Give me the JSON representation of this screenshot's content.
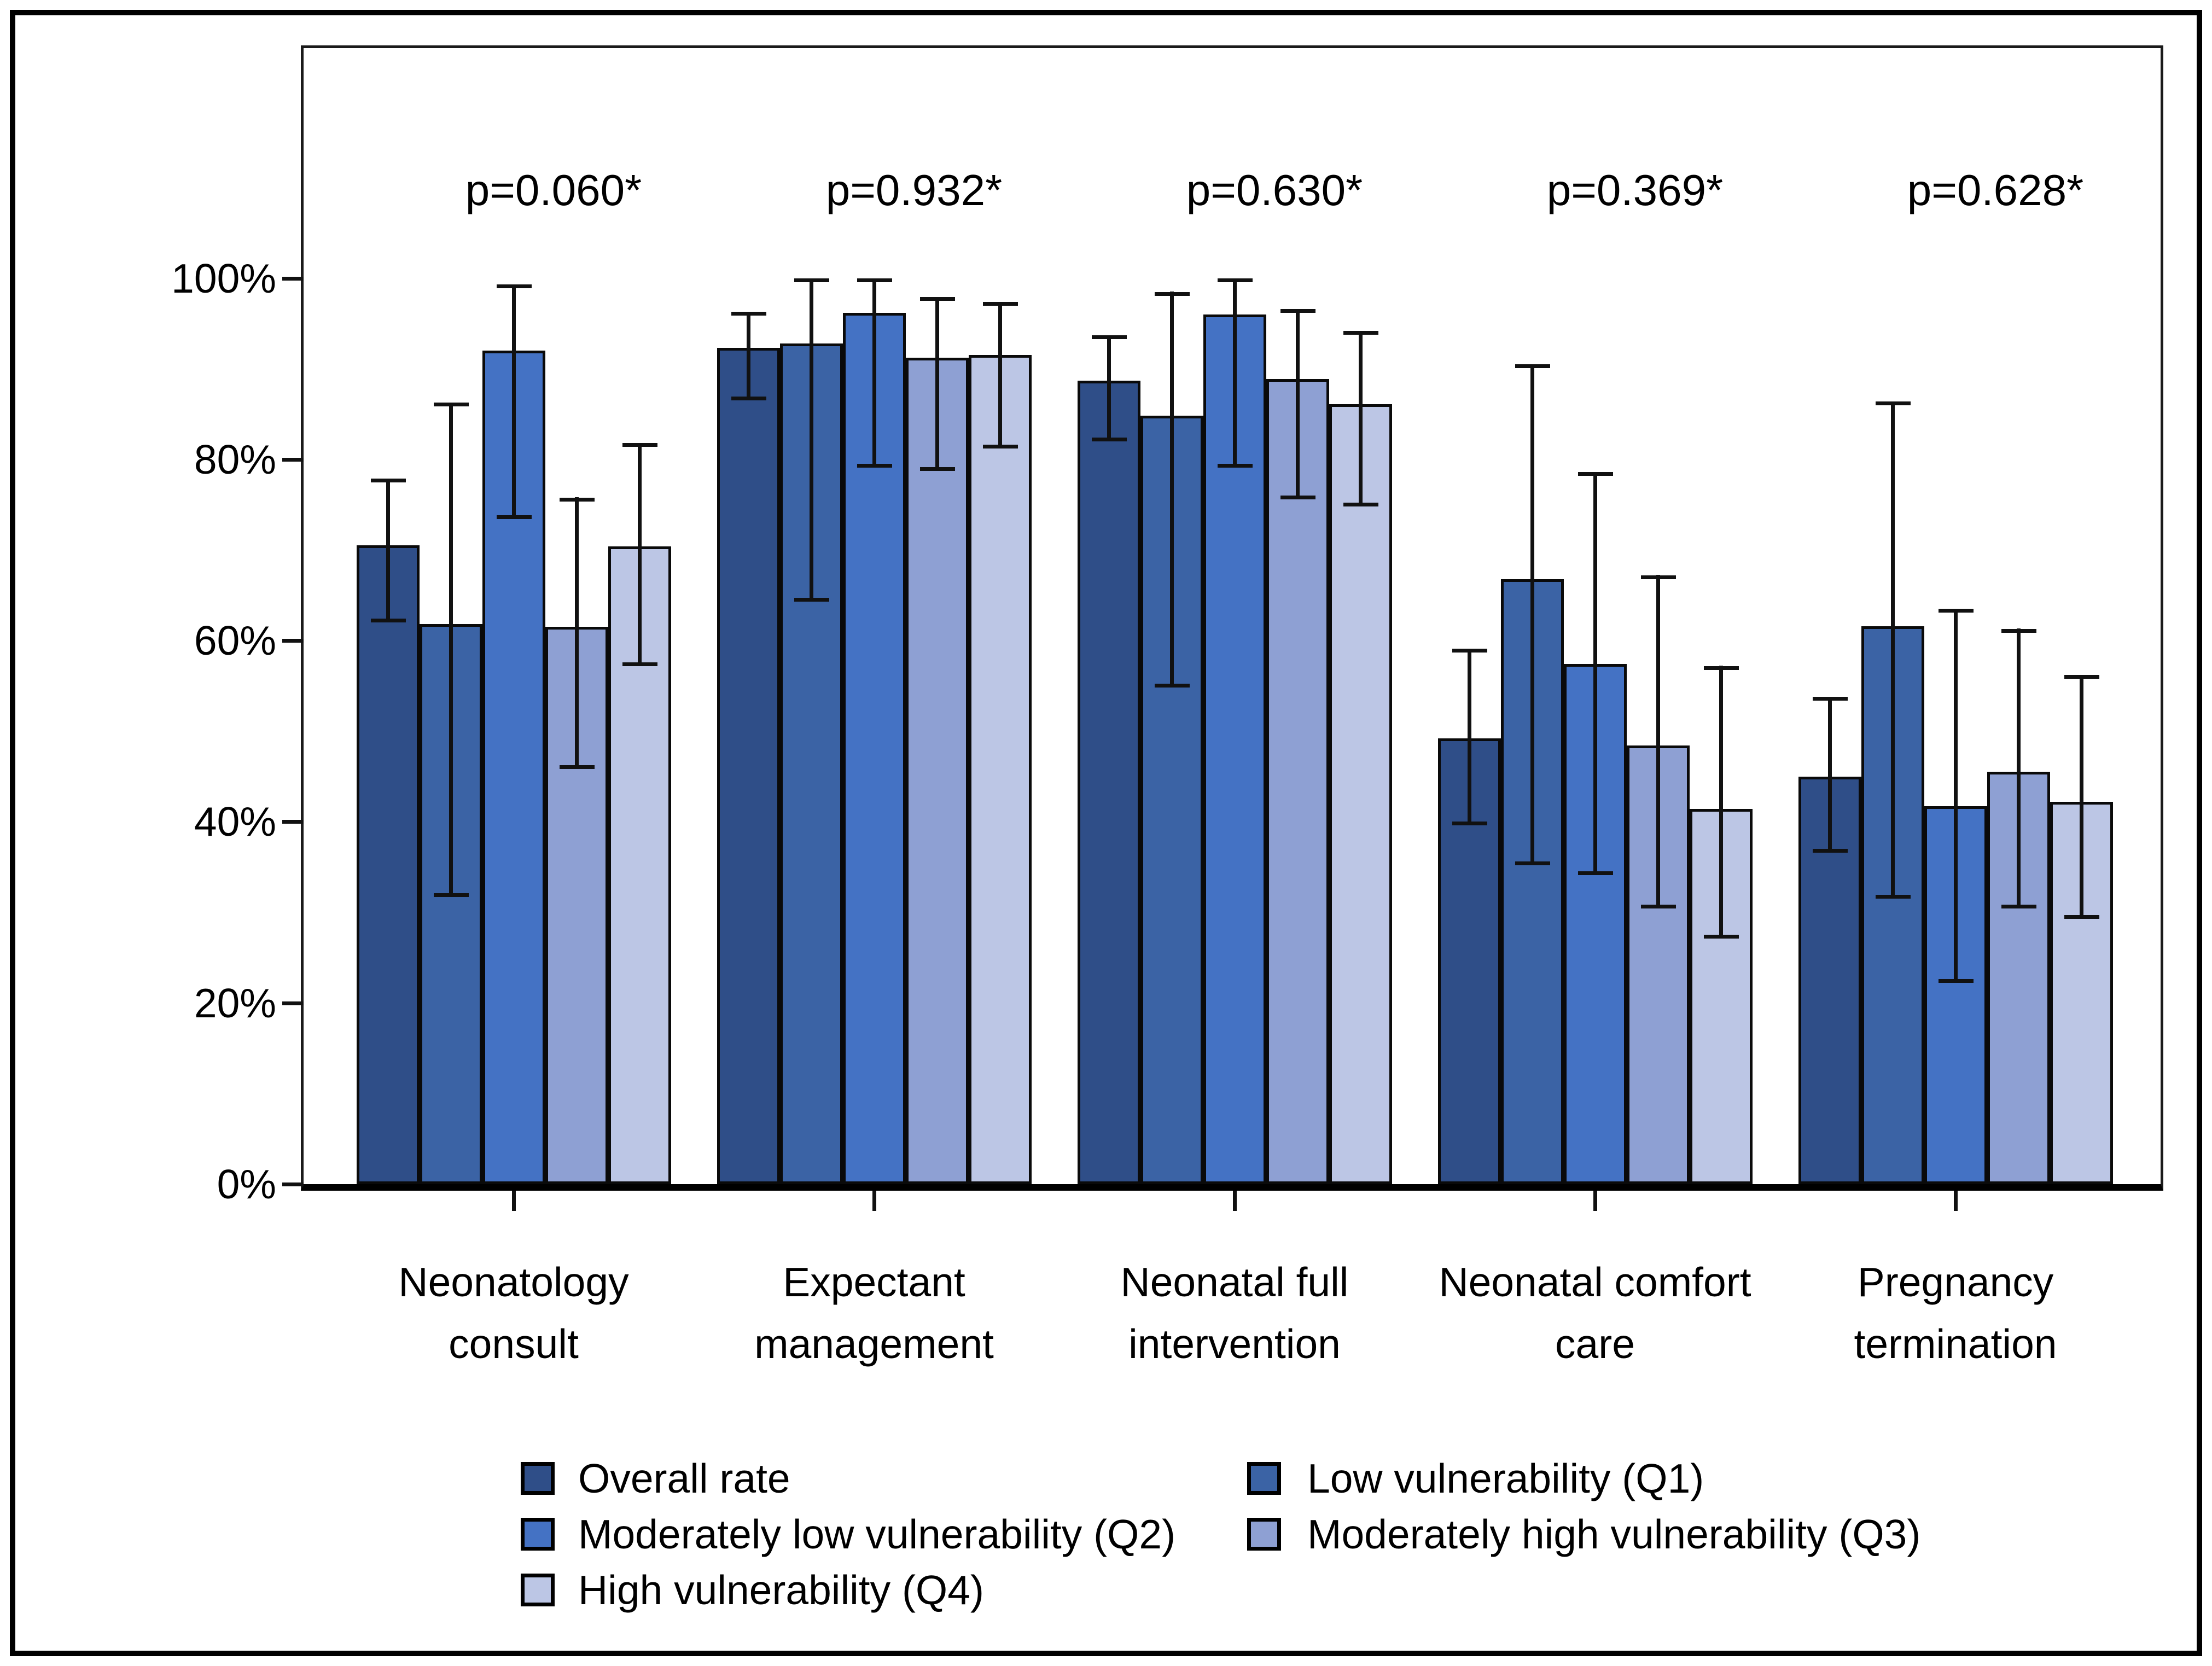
{
  "figure": {
    "background": "#ffffff",
    "border_color": "#000000",
    "axis_color": "#111111"
  },
  "chart_data": {
    "type": "bar",
    "title": "",
    "xlabel": "",
    "ylabel": "",
    "categories": [
      {
        "line1": "Neonatology",
        "line2": "consult"
      },
      {
        "line1": "Expectant",
        "line2": "management"
      },
      {
        "line1": "Neonatal full",
        "line2": "intervention"
      },
      {
        "line1": "Neonatal comfort",
        "line2": "care"
      },
      {
        "line1": "Pregnancy",
        "line2": "termination"
      }
    ],
    "p_labels": [
      "p=0.060*",
      "p=0.932*",
      "p=0.630*",
      "p=0.369*",
      "p=0.628*"
    ],
    "series": [
      {
        "name": "Overall rate",
        "color": "#2F4E88",
        "values": [
          70.5,
          92.3,
          88.7,
          49.2,
          45.0
        ],
        "ci_low": [
          62.0,
          86.5,
          82.0,
          39.6,
          36.6
        ],
        "ci_high": [
          77.9,
          96.3,
          93.7,
          59.1,
          53.8
        ]
      },
      {
        "name": "Low vulnerability (Q1)",
        "color": "#3B63A5",
        "values": [
          61.8,
          92.8,
          84.8,
          66.8,
          61.6
        ],
        "ci_low": [
          31.7,
          64.3,
          54.8,
          35.2,
          31.5
        ],
        "ci_high": [
          86.3,
          100,
          98.5,
          90.5,
          86.4
        ]
      },
      {
        "name": "Moderately low vulnerability (Q2)",
        "color": "#4472C4",
        "values": [
          92.0,
          96.2,
          96.0,
          57.4,
          41.7
        ],
        "ci_low": [
          73.4,
          79.1,
          79.1,
          34.1,
          22.2
        ],
        "ci_high": [
          99.3,
          100,
          100,
          78.6,
          63.5
        ]
      },
      {
        "name": "Moderately high vulnerability (Q3)",
        "color": "#8EA0D3",
        "values": [
          61.5,
          91.2,
          88.9,
          48.4,
          45.5
        ],
        "ci_low": [
          45.8,
          78.7,
          75.6,
          30.4,
          30.4
        ],
        "ci_high": [
          75.8,
          97.9,
          96.6,
          67.2,
          61.3
        ]
      },
      {
        "name": "High vulnerability (Q4)",
        "color": "#BCC6E5",
        "values": [
          70.4,
          91.5,
          86.1,
          41.4,
          42.2
        ],
        "ci_low": [
          57.2,
          81.2,
          74.8,
          27.1,
          29.3
        ],
        "ci_high": [
          81.8,
          97.4,
          94.2,
          57.2,
          56.2
        ]
      }
    ],
    "y_axis": {
      "tick_values": [
        0,
        20,
        40,
        60,
        80,
        100
      ],
      "tick_labels": [
        "0%",
        "20%",
        "40%",
        "60%",
        "80%",
        "100%"
      ],
      "ylim": [
        0,
        125.4
      ],
      "grid": false
    },
    "legend": {
      "position": "bottom",
      "entries": [
        {
          "label": "Overall rate"
        },
        {
          "label": "Low vulnerability (Q1)"
        },
        {
          "label": "Moderately low vulnerability (Q2)"
        },
        {
          "label": "Moderately high vulnerability (Q3)"
        },
        {
          "label": "High vulnerability (Q4)"
        }
      ]
    }
  }
}
